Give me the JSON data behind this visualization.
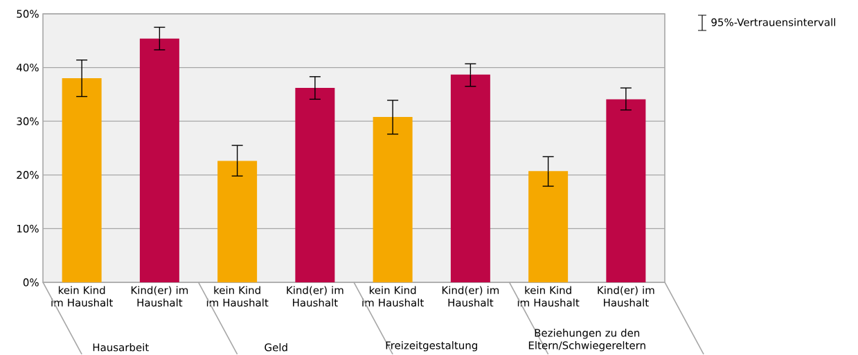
{
  "chart_data": {
    "type": "bar",
    "categories": [
      "kein Kind im Haushalt",
      "Kind(er) im Haushalt",
      "kein Kind im Haushalt",
      "Kind(er) im Haushalt",
      "kein Kind im Haushalt",
      "Kind(er) im Haushalt",
      "kein Kind im Haushalt",
      "Kind(er) im Haushalt"
    ],
    "values": [
      38.0,
      45.4,
      22.6,
      36.2,
      30.8,
      38.7,
      20.7,
      34.1
    ],
    "colors": [
      "#f5a800",
      "#be0646",
      "#f5a800",
      "#be0646",
      "#f5a800",
      "#be0646",
      "#f5a800",
      "#be0646"
    ],
    "errors": [
      [
        34.6,
        41.4
      ],
      [
        43.3,
        47.5
      ],
      [
        19.8,
        25.5
      ],
      [
        34.1,
        38.3
      ],
      [
        27.6,
        33.9
      ],
      [
        36.5,
        40.7
      ],
      [
        17.9,
        23.4
      ],
      [
        32.1,
        36.2
      ]
    ],
    "ylim": [
      0,
      50
    ],
    "yticks": [
      {
        "value": 0,
        "label": "0%"
      },
      {
        "value": 10,
        "label": "10%"
      },
      {
        "value": 20,
        "label": "20%"
      },
      {
        "value": 30,
        "label": "30%"
      },
      {
        "value": 40,
        "label": "40%"
      },
      {
        "value": 50,
        "label": "50%"
      }
    ],
    "grid": "y",
    "annotations": [
      "Hausarbeit",
      "Geld",
      "Freizeitgestaltung",
      "Beziehungen zu den Eltern/Schwiegereltern",
      "95%-Vertrauensintervall"
    ]
  }
}
